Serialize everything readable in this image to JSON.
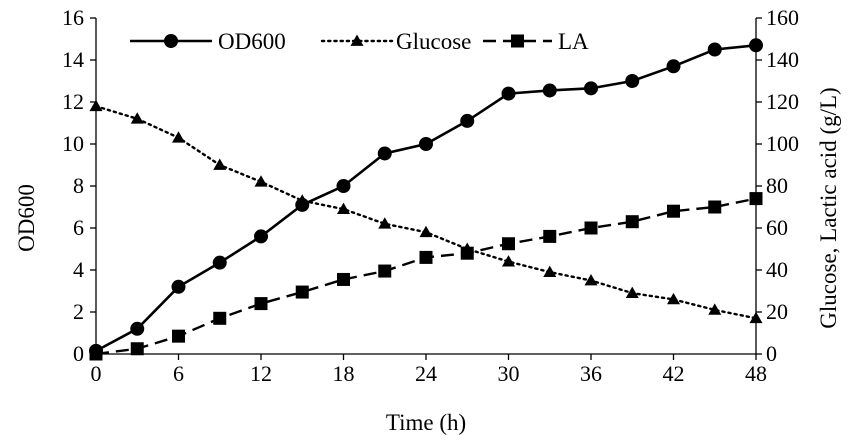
{
  "chart_data": {
    "type": "line",
    "title": "",
    "xlabel": "Time (h)",
    "ylabel_left": "OD600",
    "ylabel_right": "Glucose, Lactic acid (g/L)",
    "xlim": [
      0,
      48
    ],
    "xticks": [
      0,
      6,
      12,
      18,
      24,
      30,
      36,
      42,
      48
    ],
    "ylim_left": [
      0,
      16
    ],
    "yticks_left": [
      0,
      2,
      4,
      6,
      8,
      10,
      12,
      14,
      16
    ],
    "ylim_right": [
      0,
      160
    ],
    "yticks_right": [
      0,
      20,
      40,
      60,
      80,
      100,
      120,
      140,
      160
    ],
    "grid": false,
    "legend_position": "top",
    "series": [
      {
        "name": "OD600",
        "axis": "left",
        "marker": "circle",
        "line_style": "solid",
        "color": "#000000",
        "x": [
          0,
          3,
          6,
          9,
          12,
          15,
          18,
          21,
          24,
          27,
          30,
          33,
          36,
          39,
          42,
          45,
          48
        ],
        "values": [
          0.15,
          1.2,
          3.2,
          4.35,
          5.6,
          7.1,
          8.0,
          9.55,
          10.0,
          11.1,
          12.4,
          12.55,
          12.65,
          13.0,
          13.7,
          14.5,
          14.7
        ]
      },
      {
        "name": "Glucose",
        "axis": "right",
        "marker": "triangle",
        "line_style": "dotted",
        "color": "#000000",
        "x": [
          0,
          3,
          6,
          9,
          12,
          15,
          18,
          21,
          24,
          27,
          30,
          33,
          36,
          39,
          42,
          45,
          48
        ],
        "values": [
          118,
          112,
          103,
          90,
          82,
          73,
          69,
          62,
          58,
          50,
          44,
          39,
          35,
          29,
          26,
          21,
          17
        ]
      },
      {
        "name": "LA",
        "axis": "right",
        "marker": "square",
        "line_style": "dashed",
        "color": "#000000",
        "x": [
          0,
          3,
          6,
          9,
          12,
          15,
          18,
          21,
          24,
          27,
          30,
          33,
          36,
          39,
          42,
          45,
          48
        ],
        "values": [
          0,
          2.5,
          8.5,
          17,
          24,
          29.5,
          35.5,
          39.5,
          46,
          48,
          52.5,
          56,
          60,
          63,
          68,
          70,
          74
        ]
      }
    ]
  }
}
